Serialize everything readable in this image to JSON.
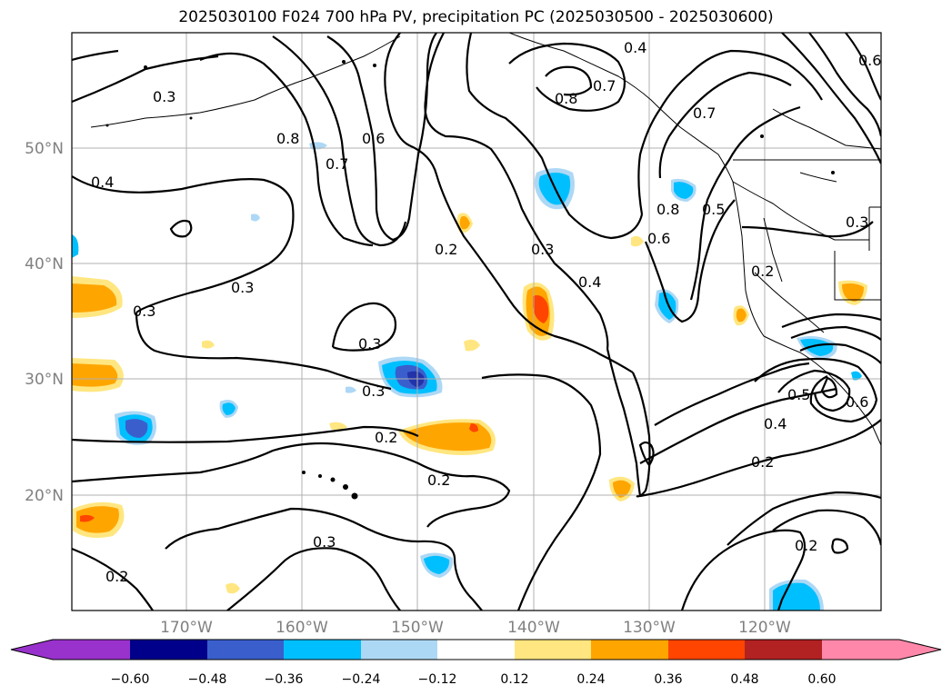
{
  "title": "2025030100 F024 700 hPa PV, precipitation PC (2025030500 - 2025030600)",
  "latitude_labels": [
    "50°N",
    "40°N",
    "30°N",
    "20°N"
  ],
  "longitude_labels": [
    "170°W",
    "160°W",
    "150°W",
    "140°W",
    "130°W",
    "120°W"
  ],
  "contour_labels": [
    "0.3",
    "0.8",
    "0.7",
    "0.6",
    "0.4",
    "0.2",
    "0.3",
    "0.8",
    "0.7",
    "0.7",
    "0.6",
    "0.5",
    "0.3",
    "0.4",
    "0.2",
    "0.4",
    "0.6",
    "0.3",
    "0.3",
    "0.3",
    "0.3",
    "0.2",
    "0.2",
    "0.3",
    "0.2",
    "0.2",
    "0.4",
    "0.5",
    "0.6",
    "0.2",
    "0.8"
  ],
  "colorbar": {
    "ticks": [
      "−0.60",
      "−0.48",
      "−0.36",
      "−0.24",
      "−0.12",
      "0.12",
      "0.24",
      "0.36",
      "0.48",
      "0.60"
    ],
    "colors": [
      "#9932cc",
      "#00008b",
      "#3a5fcd",
      "#00bfff",
      "#add8f5",
      "#ffffff",
      "#ffe680",
      "#ffa500",
      "#ff4500",
      "#b22222",
      "#ff88aa"
    ]
  },
  "precip_colors": {
    "light_blue": "#add8f5",
    "cyan": "#00bfff",
    "blue": "#3a5fcd",
    "navy": "#2233aa",
    "yellow": "#ffe680",
    "orange": "#ffa500",
    "red": "#ff4500"
  }
}
